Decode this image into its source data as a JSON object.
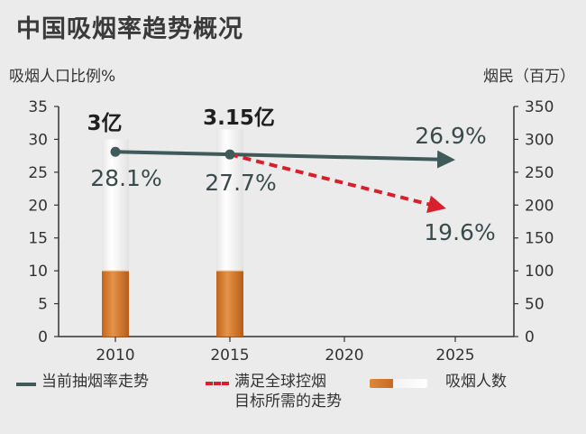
{
  "title": "中国吸烟率趋势概况",
  "left_axis_title": "吸烟人口比例%",
  "right_axis_title": "烟民（百万）",
  "legend": {
    "current_trend": "当前抽烟率走势",
    "target_trend": "满足全球控烟\n目标所需的走势",
    "smokers": "吸烟人数"
  },
  "colors": {
    "current_trend": "#3f5a59",
    "target_trend": "#d8202c",
    "cigarette_filter": "#d07a2e",
    "background": "#ebebeb"
  },
  "chart_data": {
    "type": "line+bar",
    "title": "中国吸烟率趋势概况",
    "x_categories": [
      "2010",
      "2015",
      "2020",
      "2025"
    ],
    "y_left": {
      "label": "吸烟人口比例%",
      "range": [
        0,
        35
      ],
      "ticks": [
        "0",
        "5",
        "10",
        "15",
        "20",
        "25",
        "30",
        "35"
      ]
    },
    "y_right": {
      "label": "烟民（百万）",
      "range": [
        0,
        350
      ],
      "ticks": [
        "0",
        "50",
        "100",
        "150",
        "200",
        "250",
        "300",
        "350"
      ]
    },
    "series": [
      {
        "name": "当前抽烟率走势",
        "style": "solid",
        "axis": "left",
        "points": [
          {
            "x": "2010",
            "y": 28.1
          },
          {
            "x": "2015",
            "y": 27.7
          },
          {
            "x": "2025",
            "y": 26.9
          }
        ]
      },
      {
        "name": "满足全球控烟目标所需的走势",
        "style": "dashed",
        "axis": "left",
        "points": [
          {
            "x": "2015",
            "y": 27.7
          },
          {
            "x": "2025",
            "y": 19.6
          }
        ]
      },
      {
        "name": "吸烟人数",
        "style": "bar",
        "axis": "right",
        "points": [
          {
            "x": "2010",
            "y": 300
          },
          {
            "x": "2015",
            "y": 315
          }
        ]
      }
    ],
    "data_labels": [
      {
        "text": "3亿",
        "x": "2010",
        "ref": "smokers"
      },
      {
        "text": "3.15亿",
        "x": "2015",
        "ref": "smokers"
      },
      {
        "text": "28.1%",
        "x": "2010",
        "ref": "current"
      },
      {
        "text": "27.7%",
        "x": "2015",
        "ref": "current"
      },
      {
        "text": "26.9%",
        "x": "2025",
        "ref": "current"
      },
      {
        "text": "19.6%",
        "x": "2025",
        "ref": "target"
      }
    ],
    "grid": false
  }
}
